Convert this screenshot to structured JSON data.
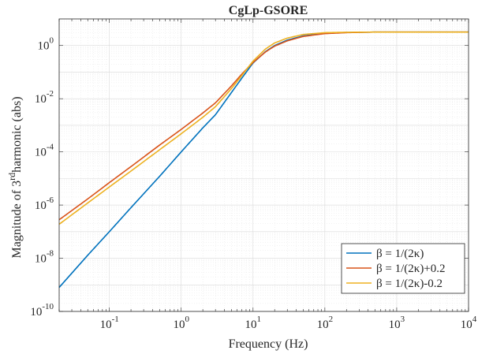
{
  "chart_data": {
    "type": "line",
    "title": "CgLp-GSORE",
    "xlabel": "Frequency (Hz)",
    "ylabel": {
      "pre": "Magnitude of 3",
      "sup": "rd",
      "post": "harmonic (abs)"
    },
    "xscale": "log",
    "yscale": "log",
    "xlim": [
      0.02,
      10000
    ],
    "ylim": [
      1e-10,
      10
    ],
    "grid": true,
    "legend_position": "bottom-right",
    "xticks": [
      {
        "value": 0.1,
        "base": "10",
        "exp": "-1"
      },
      {
        "value": 1,
        "base": "10",
        "exp": "0"
      },
      {
        "value": 10,
        "base": "10",
        "exp": "1"
      },
      {
        "value": 100,
        "base": "10",
        "exp": "2"
      },
      {
        "value": 1000,
        "base": "10",
        "exp": "3"
      },
      {
        "value": 10000,
        "base": "10",
        "exp": "4"
      }
    ],
    "yticks": [
      {
        "value": 1e-10,
        "base": "10",
        "exp": "-10"
      },
      {
        "value": 1e-08,
        "base": "10",
        "exp": "-8"
      },
      {
        "value": 1e-06,
        "base": "10",
        "exp": "-6"
      },
      {
        "value": 0.0001,
        "base": "10",
        "exp": "-4"
      },
      {
        "value": 0.01,
        "base": "10",
        "exp": "-2"
      },
      {
        "value": 1,
        "base": "10",
        "exp": "0"
      }
    ],
    "series": [
      {
        "name": "β = 1/(2κ)",
        "color": "#0072BD",
        "x": [
          0.02,
          0.05,
          0.1,
          0.2,
          0.5,
          1,
          2,
          3,
          5,
          7,
          10,
          15,
          20,
          30,
          50,
          100,
          200,
          500,
          1000,
          10000
        ],
        "y": [
          8e-10,
          1.3e-08,
          1e-07,
          8e-07,
          1.2e-05,
          0.0001,
          0.0008,
          0.0025,
          0.017,
          0.06,
          0.22,
          0.6,
          1.0,
          1.6,
          2.3,
          2.9,
          3.1,
          3.2,
          3.2,
          3.2
        ]
      },
      {
        "name": "β = 1/(2κ)+0.2",
        "color": "#D95319",
        "x": [
          0.02,
          0.05,
          0.1,
          0.2,
          0.5,
          1,
          2,
          3,
          5,
          7,
          10,
          15,
          20,
          30,
          50,
          100,
          200,
          500,
          1000,
          10000
        ],
        "y": [
          2.8e-07,
          1.7e-06,
          7e-06,
          2.8e-05,
          0.00018,
          0.0007,
          0.0029,
          0.007,
          0.03,
          0.085,
          0.23,
          0.58,
          0.95,
          1.5,
          2.2,
          2.8,
          3.05,
          3.2,
          3.2,
          3.2
        ]
      },
      {
        "name": "β = 1/(2κ)-0.2",
        "color": "#EDB120",
        "x": [
          0.02,
          0.05,
          0.1,
          0.2,
          0.5,
          1,
          2,
          3,
          5,
          7,
          10,
          15,
          20,
          30,
          50,
          100,
          200,
          500,
          1000,
          10000
        ],
        "y": [
          1.9e-07,
          1.2e-06,
          4.8e-06,
          1.9e-05,
          0.00012,
          0.00048,
          0.002,
          0.005,
          0.024,
          0.075,
          0.26,
          0.75,
          1.25,
          1.9,
          2.6,
          3.05,
          3.15,
          3.2,
          3.2,
          3.2
        ]
      }
    ]
  }
}
